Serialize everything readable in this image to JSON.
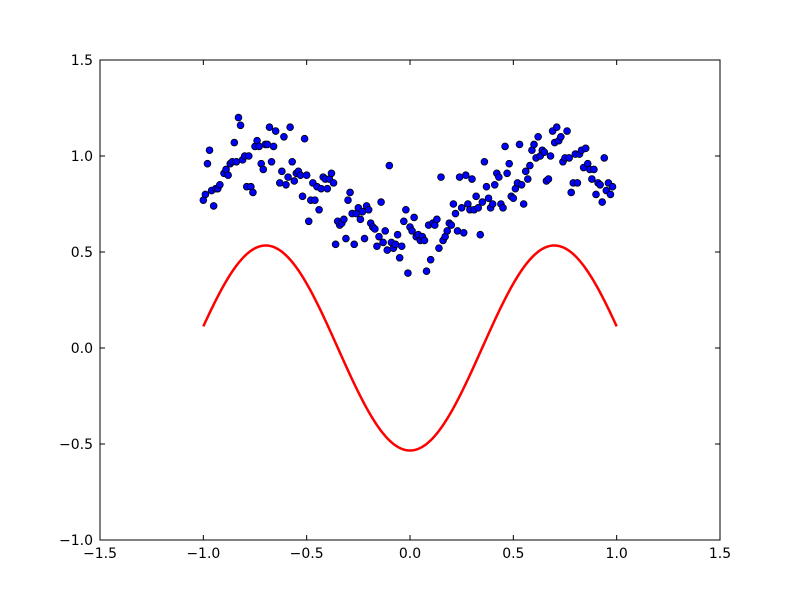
{
  "chart_data": {
    "type": "scatter",
    "title": "",
    "xlabel": "",
    "ylabel": "",
    "xlim": [
      -1.5,
      1.5
    ],
    "ylim": [
      -1.0,
      1.5
    ],
    "xticks": [
      -1.5,
      -1.0,
      -0.5,
      0.0,
      0.5,
      1.0,
      1.5
    ],
    "yticks": [
      -1.0,
      -0.5,
      0.0,
      0.5,
      1.0,
      1.5
    ],
    "xtick_labels": [
      "−1.5",
      "−1.0",
      "−0.5",
      "0.0",
      "0.5",
      "1.0",
      "1.5"
    ],
    "ytick_labels": [
      "−1.0",
      "−0.5",
      "0.0",
      "0.5",
      "1.0",
      "1.5"
    ],
    "grid": false,
    "series": [
      {
        "kind": "scatter",
        "color": "#0000ff",
        "edge_color": "#000000",
        "points": [
          [
            -1.0,
            0.77
          ],
          [
            -0.99,
            0.8
          ],
          [
            -0.98,
            0.96
          ],
          [
            -0.97,
            1.03
          ],
          [
            -0.96,
            0.82
          ],
          [
            -0.95,
            0.74
          ],
          [
            -0.94,
            0.83
          ],
          [
            -0.93,
            0.83
          ],
          [
            -0.92,
            0.85
          ],
          [
            -0.9,
            0.91
          ],
          [
            -0.89,
            0.93
          ],
          [
            -0.88,
            0.9
          ],
          [
            -0.87,
            0.96
          ],
          [
            -0.86,
            0.97
          ],
          [
            -0.85,
            1.07
          ],
          [
            -0.84,
            0.97
          ],
          [
            -0.83,
            1.2
          ],
          [
            -0.82,
            1.16
          ],
          [
            -0.81,
            0.98
          ],
          [
            -0.8,
            1.0
          ],
          [
            -0.79,
            0.84
          ],
          [
            -0.78,
            1.0
          ],
          [
            -0.77,
            0.84
          ],
          [
            -0.76,
            0.81
          ],
          [
            -0.75,
            1.05
          ],
          [
            -0.74,
            1.08
          ],
          [
            -0.73,
            1.05
          ],
          [
            -0.72,
            0.96
          ],
          [
            -0.71,
            0.93
          ],
          [
            -0.7,
            1.06
          ],
          [
            -0.69,
            1.06
          ],
          [
            -0.68,
            1.15
          ],
          [
            -0.67,
            0.97
          ],
          [
            -0.66,
            1.05
          ],
          [
            -0.65,
            1.13
          ],
          [
            -0.63,
            0.86
          ],
          [
            -0.62,
            0.92
          ],
          [
            -0.61,
            1.1
          ],
          [
            -0.6,
            0.85
          ],
          [
            -0.59,
            0.89
          ],
          [
            -0.58,
            1.15
          ],
          [
            -0.57,
            0.97
          ],
          [
            -0.56,
            0.87
          ],
          [
            -0.55,
            0.91
          ],
          [
            -0.54,
            0.92
          ],
          [
            -0.53,
            0.9
          ],
          [
            -0.52,
            0.79
          ],
          [
            -0.51,
            1.09
          ],
          [
            -0.5,
            0.9
          ],
          [
            -0.49,
            0.66
          ],
          [
            -0.48,
            0.77
          ],
          [
            -0.47,
            0.86
          ],
          [
            -0.46,
            0.77
          ],
          [
            -0.45,
            0.84
          ],
          [
            -0.44,
            0.72
          ],
          [
            -0.43,
            0.83
          ],
          [
            -0.42,
            0.89
          ],
          [
            -0.41,
            0.88
          ],
          [
            -0.4,
            0.83
          ],
          [
            -0.39,
            0.88
          ],
          [
            -0.38,
            0.91
          ],
          [
            -0.37,
            0.86
          ],
          [
            -0.36,
            0.54
          ],
          [
            -0.35,
            0.66
          ],
          [
            -0.34,
            0.64
          ],
          [
            -0.33,
            0.65
          ],
          [
            -0.32,
            0.67
          ],
          [
            -0.31,
            0.57
          ],
          [
            -0.3,
            0.77
          ],
          [
            -0.29,
            0.81
          ],
          [
            -0.28,
            0.7
          ],
          [
            -0.27,
            0.54
          ],
          [
            -0.26,
            0.7
          ],
          [
            -0.25,
            0.73
          ],
          [
            -0.24,
            0.67
          ],
          [
            -0.23,
            0.71
          ],
          [
            -0.22,
            0.57
          ],
          [
            -0.21,
            0.74
          ],
          [
            -0.2,
            0.72
          ],
          [
            -0.19,
            0.65
          ],
          [
            -0.18,
            0.63
          ],
          [
            -0.17,
            0.62
          ],
          [
            -0.16,
            0.53
          ],
          [
            -0.15,
            0.58
          ],
          [
            -0.14,
            0.76
          ],
          [
            -0.13,
            0.55
          ],
          [
            -0.12,
            0.61
          ],
          [
            -0.11,
            0.51
          ],
          [
            -0.1,
            0.95
          ],
          [
            -0.09,
            0.55
          ],
          [
            -0.08,
            0.52
          ],
          [
            -0.07,
            0.54
          ],
          [
            -0.06,
            0.59
          ],
          [
            -0.05,
            0.47
          ],
          [
            -0.04,
            0.53
          ],
          [
            -0.03,
            0.66
          ],
          [
            -0.02,
            0.72
          ],
          [
            -0.01,
            0.39
          ],
          [
            0.0,
            0.63
          ],
          [
            0.01,
            0.61
          ],
          [
            0.02,
            0.68
          ],
          [
            0.03,
            0.58
          ],
          [
            0.04,
            0.59
          ],
          [
            0.05,
            0.56
          ],
          [
            0.06,
            0.58
          ],
          [
            0.07,
            0.56
          ],
          [
            0.08,
            0.4
          ],
          [
            0.09,
            0.64
          ],
          [
            0.1,
            0.46
          ],
          [
            0.11,
            0.65
          ],
          [
            0.12,
            0.64
          ],
          [
            0.13,
            0.67
          ],
          [
            0.14,
            0.52
          ],
          [
            0.15,
            0.89
          ],
          [
            0.16,
            0.56
          ],
          [
            0.17,
            0.58
          ],
          [
            0.18,
            0.61
          ],
          [
            0.19,
            0.65
          ],
          [
            0.2,
            0.64
          ],
          [
            0.21,
            0.75
          ],
          [
            0.22,
            0.7
          ],
          [
            0.23,
            0.61
          ],
          [
            0.24,
            0.89
          ],
          [
            0.25,
            0.73
          ],
          [
            0.26,
            0.6
          ],
          [
            0.27,
            0.9
          ],
          [
            0.28,
            0.75
          ],
          [
            0.29,
            0.72
          ],
          [
            0.3,
            0.88
          ],
          [
            0.31,
            0.72
          ],
          [
            0.32,
            0.79
          ],
          [
            0.33,
            0.73
          ],
          [
            0.34,
            0.59
          ],
          [
            0.35,
            0.76
          ],
          [
            0.36,
            0.97
          ],
          [
            0.37,
            0.84
          ],
          [
            0.38,
            0.78
          ],
          [
            0.39,
            0.73
          ],
          [
            0.4,
            0.75
          ],
          [
            0.41,
            0.85
          ],
          [
            0.42,
            0.91
          ],
          [
            0.43,
            0.89
          ],
          [
            0.44,
            0.75
          ],
          [
            0.45,
            0.73
          ],
          [
            0.46,
            1.05
          ],
          [
            0.47,
            0.91
          ],
          [
            0.48,
            0.96
          ],
          [
            0.49,
            0.79
          ],
          [
            0.5,
            0.78
          ],
          [
            0.51,
            0.83
          ],
          [
            0.52,
            0.86
          ],
          [
            0.53,
            1.06
          ],
          [
            0.54,
            0.85
          ],
          [
            0.55,
            0.75
          ],
          [
            0.56,
            0.92
          ],
          [
            0.57,
            0.88
          ],
          [
            0.58,
            0.95
          ],
          [
            0.59,
            1.03
          ],
          [
            0.6,
            1.06
          ],
          [
            0.61,
            0.99
          ],
          [
            0.62,
            1.1
          ],
          [
            0.63,
            1.0
          ],
          [
            0.64,
            1.03
          ],
          [
            0.65,
            1.02
          ],
          [
            0.66,
            0.87
          ],
          [
            0.67,
            0.88
          ],
          [
            0.68,
            1.0
          ],
          [
            0.69,
            1.13
          ],
          [
            0.7,
            1.07
          ],
          [
            0.71,
            1.15
          ],
          [
            0.72,
            1.08
          ],
          [
            0.73,
            1.1
          ],
          [
            0.74,
            0.97
          ],
          [
            0.75,
            0.99
          ],
          [
            0.76,
            1.13
          ],
          [
            0.77,
            0.99
          ],
          [
            0.78,
            0.81
          ],
          [
            0.79,
            0.86
          ],
          [
            0.8,
            1.01
          ],
          [
            0.81,
            0.86
          ],
          [
            0.82,
            1.01
          ],
          [
            0.83,
            1.03
          ],
          [
            0.84,
            0.94
          ],
          [
            0.85,
            1.04
          ],
          [
            0.86,
            0.96
          ],
          [
            0.87,
            0.93
          ],
          [
            0.88,
            0.88
          ],
          [
            0.89,
            0.93
          ],
          [
            0.9,
            0.8
          ],
          [
            0.91,
            0.86
          ],
          [
            0.92,
            0.85
          ],
          [
            0.93,
            0.76
          ],
          [
            0.94,
            0.99
          ],
          [
            0.95,
            0.82
          ],
          [
            0.96,
            0.86
          ],
          [
            0.97,
            0.8
          ],
          [
            0.98,
            0.84
          ]
        ]
      },
      {
        "kind": "line",
        "color": "#ff0000",
        "function": "-0.534*cos(4.5*x)",
        "x_range": [
          -1.0,
          1.0
        ]
      }
    ]
  }
}
